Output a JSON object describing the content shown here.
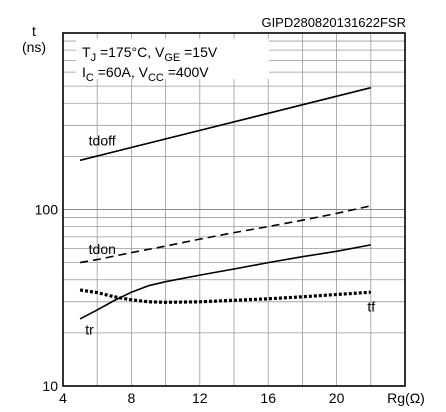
{
  "chart_data": {
    "type": "line",
    "figure_id": "GIPD280820131622FSR",
    "ylabel": "t",
    "yunit": "(ns)",
    "xlabel": "Rg(Ω)",
    "yscale": "log",
    "xlim": [
      4,
      24
    ],
    "ylim": [
      10,
      1000
    ],
    "grid": true,
    "xticks": [
      4,
      8,
      12,
      16,
      20
    ],
    "yticks": [
      10,
      100
    ],
    "conditions": {
      "line1": {
        "tj_sym": "T",
        "tj_sub": "J",
        "tj_val": " =175°C, ",
        "vge_sym": "V",
        "vge_sub": "GE",
        "vge_val": " =15V"
      },
      "line2": {
        "ic_sym": "I",
        "ic_sub": "C",
        "ic_val": " =60A, ",
        "vcc_sym": "V",
        "vcc_sub": "CC",
        "vcc_val": " =400V"
      }
    },
    "series": [
      {
        "name": "tdoff",
        "style": "solid",
        "width": 1.6,
        "label_at": [
          5.5,
          230
        ],
        "x": [
          5,
          22
        ],
        "y": [
          190,
          490
        ]
      },
      {
        "name": "tdon",
        "style": "dashed",
        "width": 1.6,
        "label_at": [
          5.5,
          56
        ],
        "x": [
          5,
          6,
          8,
          10,
          12,
          14,
          16,
          18,
          20,
          22
        ],
        "y": [
          50,
          52,
          57,
          62,
          68,
          74,
          80,
          87,
          95,
          105
        ]
      },
      {
        "name": "tr",
        "style": "solid",
        "width": 1.6,
        "label_at": [
          5.3,
          19.6
        ],
        "x": [
          5,
          6,
          7,
          8,
          9,
          10,
          12,
          14,
          16,
          18,
          20,
          22
        ],
        "y": [
          24,
          27,
          30.5,
          34,
          37,
          39,
          42.5,
          46,
          50,
          54,
          58,
          63
        ]
      },
      {
        "name": "tf",
        "style": "dotted",
        "width": 3.2,
        "label_at": [
          21.8,
          26.5
        ],
        "x": [
          5,
          6,
          7,
          8,
          9,
          10,
          12,
          14,
          16,
          18,
          20,
          22
        ],
        "y": [
          35,
          33.8,
          32,
          30.8,
          30,
          29.8,
          30,
          30.6,
          31.2,
          32,
          33,
          34
        ]
      }
    ]
  }
}
